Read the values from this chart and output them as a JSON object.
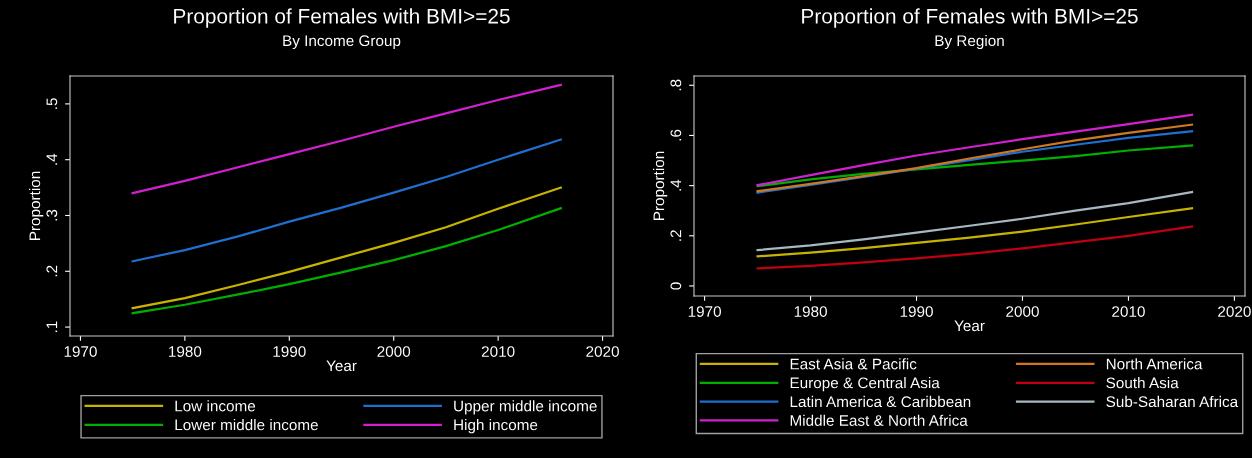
{
  "chart_data": [
    {
      "type": "line",
      "title": "Proportion of Females with BMI>=25",
      "subtitle": "By Income Group",
      "xlabel": "Year",
      "ylabel": "Proportion",
      "x": [
        1975,
        1980,
        1985,
        1990,
        1995,
        2000,
        2005,
        2010,
        2016
      ],
      "xlim": [
        1969,
        2021
      ],
      "xticks": [
        1970,
        1980,
        1990,
        2000,
        2010,
        2020
      ],
      "ylim": [
        0.084,
        0.55
      ],
      "yticks": [
        {
          "value": 0.1,
          "label": ".1"
        },
        {
          "value": 0.2,
          "label": ".2"
        },
        {
          "value": 0.3,
          "label": ".3"
        },
        {
          "value": 0.4,
          "label": ".4"
        },
        {
          "value": 0.5,
          "label": ".5"
        }
      ],
      "grid": false,
      "legend": "bottom",
      "series": [
        {
          "name": "Low income",
          "color": "#c8b400",
          "values": [
            0.134,
            0.152,
            0.175,
            0.199,
            0.225,
            0.251,
            0.279,
            0.312,
            0.35
          ]
        },
        {
          "name": "Lower middle income",
          "color": "#00b000",
          "values": [
            0.125,
            0.14,
            0.158,
            0.177,
            0.198,
            0.22,
            0.245,
            0.274,
            0.313
          ]
        },
        {
          "name": "Upper middle income",
          "color": "#1f6fd0",
          "values": [
            0.218,
            0.238,
            0.262,
            0.289,
            0.314,
            0.341,
            0.369,
            0.4,
            0.436
          ]
        },
        {
          "name": "High income",
          "color": "#d020d0",
          "values": [
            0.34,
            0.362,
            0.386,
            0.41,
            0.434,
            0.459,
            0.483,
            0.507,
            0.534
          ]
        }
      ]
    },
    {
      "type": "line",
      "title": "Proportion of Females with BMI>=25",
      "subtitle": "By Region",
      "xlabel": "Year",
      "ylabel": "Proportion",
      "x": [
        1975,
        1980,
        1985,
        1990,
        1995,
        2000,
        2005,
        2010,
        2016
      ],
      "xlim": [
        1969,
        2021
      ],
      "xticks": [
        1970,
        1980,
        1990,
        2000,
        2010,
        2020
      ],
      "ylim": [
        -0.04,
        0.837
      ],
      "yticks": [
        0,
        {
          "value": 0.2,
          "label": ".2"
        },
        {
          "value": 0.4,
          "label": ".4"
        },
        {
          "value": 0.6,
          "label": ".6"
        },
        {
          "value": 0.8,
          "label": ".8"
        }
      ],
      "grid": false,
      "legend": "bottom",
      "series": [
        {
          "name": "East Asia & Pacific",
          "color": "#c8b400",
          "values": [
            0.118,
            0.133,
            0.151,
            0.172,
            0.193,
            0.217,
            0.245,
            0.275,
            0.31
          ]
        },
        {
          "name": "Europe & Central Asia",
          "color": "#00b000",
          "values": [
            0.398,
            0.425,
            0.447,
            0.465,
            0.483,
            0.5,
            0.518,
            0.54,
            0.56
          ]
        },
        {
          "name": "Latin America & Caribbean",
          "color": "#1f6fd0",
          "values": [
            0.372,
            0.403,
            0.435,
            0.468,
            0.502,
            0.535,
            0.563,
            0.59,
            0.617
          ]
        },
        {
          "name": "Middle East & North Africa",
          "color": "#d020d0",
          "values": [
            0.402,
            0.442,
            0.482,
            0.52,
            0.553,
            0.585,
            0.615,
            0.645,
            0.682
          ]
        },
        {
          "name": "North America",
          "color": "#d07820",
          "values": [
            0.378,
            0.407,
            0.438,
            0.47,
            0.508,
            0.545,
            0.58,
            0.61,
            0.643
          ]
        },
        {
          "name": "South Asia",
          "color": "#c00010",
          "values": [
            0.07,
            0.08,
            0.094,
            0.11,
            0.128,
            0.15,
            0.175,
            0.2,
            0.237
          ]
        },
        {
          "name": "Sub-Saharan Africa",
          "color": "#a8b8c0",
          "values": [
            0.143,
            0.162,
            0.186,
            0.213,
            0.24,
            0.268,
            0.3,
            0.33,
            0.374
          ]
        }
      ]
    }
  ]
}
